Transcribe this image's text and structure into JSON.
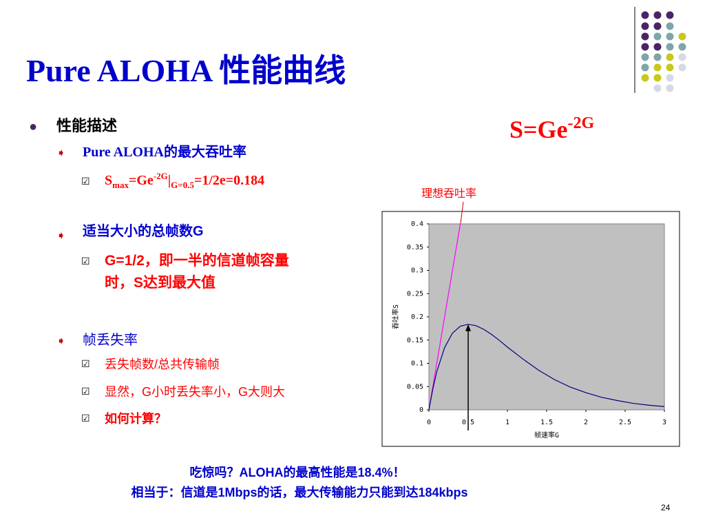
{
  "title": "Pure ALOHA 性能曲线",
  "formula": {
    "base": "S=Ge",
    "exponent": "-2G"
  },
  "bullet": "性能描述",
  "sections": [
    {
      "heading": "Pure ALOHA的最大吞吐率",
      "points": [
        {
          "parts": [
            "S",
            "max",
            "=Ge",
            "-2G",
            "|",
            "G=0.5",
            "=1/2e=0.184"
          ]
        }
      ]
    },
    {
      "heading": "适当大小的总帧数G",
      "points": [
        {
          "lines": [
            "G=1/2，即一半的信道帧容量",
            "时，S达到最大值"
          ]
        }
      ]
    },
    {
      "heading": "帧丢失率",
      "points": [
        {
          "text": "丢失帧数/总共传输帧"
        },
        {
          "text": "显然，G小时丢失率小，G大则大"
        },
        {
          "text": "如何计算？"
        }
      ]
    }
  ],
  "caption": [
    "吃惊吗？ALOHA的最高性能是18.4%！",
    "相当于：信道是1Mbps的话，最大传输能力只能到达184kbps"
  ],
  "page_number": "24",
  "chart_data": {
    "type": "line",
    "x_label": "帧速率G",
    "y_label": "吞吐率S",
    "xlim": [
      0,
      3
    ],
    "xticks": [
      0,
      0.5,
      1,
      1.5,
      2,
      2.5,
      3
    ],
    "ylim": [
      0,
      0.4
    ],
    "yticks": [
      0,
      0.05,
      0.1,
      0.15,
      0.2,
      0.25,
      0.3,
      0.35,
      0.4
    ],
    "series": [
      {
        "name": "理想吞吐率",
        "color": "#ff00ff",
        "x": [
          0,
          0.4
        ],
        "values": [
          0,
          0.4
        ]
      },
      {
        "color": "#000080",
        "x": [
          0,
          0.05,
          0.1,
          0.2,
          0.3,
          0.4,
          0.5,
          0.6,
          0.7,
          0.8,
          0.9,
          1,
          1.2,
          1.4,
          1.6,
          1.8,
          2,
          2.2,
          2.4,
          2.6,
          2.8,
          3
        ],
        "values": [
          0,
          0.045,
          0.082,
          0.134,
          0.165,
          0.18,
          0.184,
          0.181,
          0.173,
          0.162,
          0.149,
          0.135,
          0.109,
          0.085,
          0.065,
          0.049,
          0.037,
          0.027,
          0.02,
          0.014,
          0.01,
          0.007
        ]
      }
    ],
    "annotation": {
      "x": 0.5,
      "y": 0.184
    },
    "background": "#c0c0c0"
  }
}
